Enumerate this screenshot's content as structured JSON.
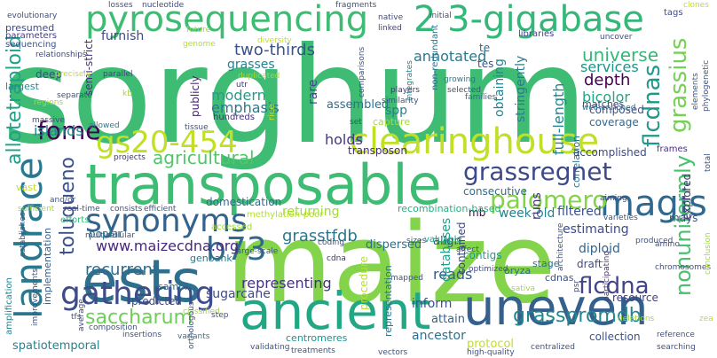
{
  "words": [
    {
      "text": "sorghum",
      "color": "#3fbc73"
    },
    {
      "text": "maize",
      "color": "#84d44b"
    },
    {
      "text": "transposable",
      "color": "#3fbc73"
    },
    {
      "text": "ancient",
      "color": "#22a785"
    },
    {
      "text": "ests",
      "color": "#2e6f8e"
    },
    {
      "text": "uneven",
      "color": "#34608d"
    },
    {
      "text": "pyrosequencing",
      "color": "#3fbc73"
    },
    {
      "text": "2 3-gigabase",
      "color": "#35b779"
    },
    {
      "text": "clearinghouse",
      "color": "#c0df25"
    },
    {
      "text": "gs20-454",
      "color": "#c0df25"
    },
    {
      "text": "landrace",
      "color": "#2a788e"
    },
    {
      "text": "gathering",
      "color": "#3e4c8a"
    },
    {
      "text": "synonyms",
      "color": "#33628d"
    },
    {
      "text": "b73",
      "color": "#31688e"
    },
    {
      "text": "magis",
      "color": "#31688e"
    },
    {
      "text": "flcdnas",
      "color": "#1f988b"
    },
    {
      "text": "grassius",
      "color": "#75d054"
    },
    {
      "text": "grassregnet",
      "color": "#3e4989"
    },
    {
      "text": "palomero",
      "color": "#84d44b"
    },
    {
      "text": "flcdna",
      "color": "#414487"
    },
    {
      "text": "nonuniformly",
      "color": "#48c16e"
    },
    {
      "text": "grasspromdb",
      "color": "#25858e"
    },
    {
      "text": "saccharum",
      "color": "#6ece58"
    },
    {
      "text": "fome",
      "color": "#440154"
    },
    {
      "text": "allotetraploid",
      "color": "#1fa188"
    },
    {
      "text": "toluqueno",
      "color": "#3b528b"
    },
    {
      "text": "agricultural",
      "color": "#52c569"
    },
    {
      "text": "grasstfdb",
      "color": "#2a788e"
    },
    {
      "text": "two-thirds",
      "color": "#3b528b"
    },
    {
      "text": "annotated",
      "color": "#2a788e"
    },
    {
      "text": "universe",
      "color": "#35b779"
    },
    {
      "text": "www.maizecdna.org",
      "color": "#482878"
    },
    {
      "text": "recurrent",
      "color": "#2f6c8e"
    },
    {
      "text": "representing",
      "color": "#46337e"
    },
    {
      "text": "sugarcane",
      "color": "#3e4c8a"
    },
    {
      "text": "services",
      "color": "#1f948c"
    },
    {
      "text": "depth",
      "color": "#440154"
    },
    {
      "text": "bicolor",
      "color": "#22a785"
    },
    {
      "text": "full-length",
      "color": "#26828e"
    },
    {
      "text": "islands",
      "color": "#25858e"
    },
    {
      "text": "modern",
      "color": "#1f9e89"
    },
    {
      "text": "emphasis",
      "color": "#2a788e"
    },
    {
      "text": "furnish",
      "color": "#404688"
    },
    {
      "text": "grasses",
      "color": "#26828e"
    },
    {
      "text": "holds",
      "color": "#453781"
    },
    {
      "text": "transposon",
      "color": "#472d7b"
    },
    {
      "text": "domestication",
      "color": "#31688e"
    },
    {
      "text": "returning",
      "color": "#a2da37"
    },
    {
      "text": "mb",
      "color": "#440154"
    },
    {
      "text": "week-old",
      "color": "#26828e"
    },
    {
      "text": "filtered",
      "color": "#3b528b"
    },
    {
      "text": "runs",
      "color": "#46327e"
    },
    {
      "text": "estimating",
      "color": "#3e4a89"
    },
    {
      "text": "diploid",
      "color": "#33638d"
    },
    {
      "text": "contigs",
      "color": "#1f9a8a"
    },
    {
      "text": "reads",
      "color": "#38598c"
    },
    {
      "text": "databases",
      "color": "#1fa188"
    },
    {
      "text": "contained",
      "color": "#404688"
    },
    {
      "text": "stringently",
      "color": "#297b8e"
    },
    {
      "text": "obtaining",
      "color": "#26828e"
    },
    {
      "text": "assembled",
      "color": "#2d708e"
    },
    {
      "text": "rare",
      "color": "#3e4c8a"
    },
    {
      "text": "spp",
      "color": "#277f8e"
    },
    {
      "text": "te",
      "color": "#31688e"
    },
    {
      "text": "tes",
      "color": "#3b528b"
    },
    {
      "text": "genome",
      "color": "#b5de2b"
    },
    {
      "text": "publicly",
      "color": "#482576"
    },
    {
      "text": "hundreds",
      "color": "#472f7d"
    },
    {
      "text": "rice",
      "color": "#c0df25"
    },
    {
      "text": "utr",
      "color": "#46337e"
    },
    {
      "text": "duplicated",
      "color": "#a2da37"
    },
    {
      "text": "semi-strict",
      "color": "#46327e"
    },
    {
      "text": "parallel",
      "color": "#424186"
    },
    {
      "text": "deep",
      "color": "#3e4c8a"
    },
    {
      "text": "presumed",
      "color": "#3e4a89"
    },
    {
      "text": "parameters",
      "color": "#443a83"
    },
    {
      "text": "sequencing",
      "color": "#3b528b"
    },
    {
      "text": "largest",
      "color": "#23898e"
    },
    {
      "text": "future",
      "color": "#9dd93b"
    },
    {
      "text": "composed",
      "color": "#3b528b"
    },
    {
      "text": "coverage",
      "color": "#31688e"
    },
    {
      "text": "matches",
      "color": "#433e85"
    },
    {
      "text": "correlation",
      "color": "#2c728e"
    },
    {
      "text": "accomplished",
      "color": "#3e4989"
    },
    {
      "text": "consecutive",
      "color": "#2f6c8e"
    },
    {
      "text": "recombination-based",
      "color": "#29af7f"
    },
    {
      "text": "align",
      "color": "#3b528b"
    },
    {
      "text": "dispersed",
      "color": "#2d708e"
    },
    {
      "text": "procedure",
      "color": "#b8de29"
    },
    {
      "text": "representation",
      "color": "#2c728e"
    },
    {
      "text": "inform",
      "color": "#3b528b"
    },
    {
      "text": "attain",
      "color": "#33638d"
    },
    {
      "text": "ancestor",
      "color": "#2d708e"
    },
    {
      "text": "collection",
      "color": "#3b528b"
    },
    {
      "text": "centromeres",
      "color": "#20928c"
    },
    {
      "text": "resource",
      "color": "#433e85"
    },
    {
      "text": "draft",
      "color": "#3e4c8a"
    },
    {
      "text": "poplar",
      "color": "#29798e"
    },
    {
      "text": "efforts",
      "color": "#38b977"
    },
    {
      "text": "predicted",
      "color": "#3e4c8a"
    },
    {
      "text": "genbank",
      "color": "#2a788e"
    },
    {
      "text": "sample",
      "color": "#2d708e"
    },
    {
      "text": "implementation",
      "color": "#355f8d"
    },
    {
      "text": "amplification",
      "color": "#26828e"
    },
    {
      "text": "spatiotemporal",
      "color": "#26828e"
    },
    {
      "text": "protocol",
      "color": "#c0df25"
    },
    {
      "text": "mays",
      "color": "#3b528b"
    },
    {
      "text": "explored",
      "color": "#46327e"
    },
    {
      "text": "valuable",
      "color": "#20a386"
    },
    {
      "text": "oryza",
      "color": "#31688e"
    },
    {
      "text": "cdna",
      "color": "#472c7a"
    },
    {
      "text": "cdnas",
      "color": "#3b528b"
    },
    {
      "text": "stage",
      "color": "#2c728e"
    },
    {
      "text": "tissue",
      "color": "#3b528b"
    },
    {
      "text": "vast",
      "color": "#c0df25"
    },
    {
      "text": "projects",
      "color": "#46337e"
    },
    {
      "text": "set",
      "color": "#3e4c8a"
    },
    {
      "text": "capture",
      "color": "#a5db36"
    },
    {
      "text": "frames",
      "color": "#46327e"
    },
    {
      "text": "elements",
      "color": "#39568c"
    },
    {
      "text": "phylogenetic",
      "color": "#3b528b"
    },
    {
      "text": "tags",
      "color": "#3e4c8a"
    },
    {
      "text": "native",
      "color": "#3e4989"
    },
    {
      "text": "fragments",
      "color": "#3b528b"
    },
    {
      "text": "libraries",
      "color": "#424186"
    },
    {
      "text": "uncover",
      "color": "#3e4989"
    },
    {
      "text": "well-enriched",
      "color": "#2a788e"
    },
    {
      "text": "comparisons",
      "color": "#3b528b"
    },
    {
      "text": "integrates",
      "color": "#26828e"
    },
    {
      "text": "non-redundant",
      "color": "#2d708e"
    },
    {
      "text": "players",
      "color": "#46337e"
    },
    {
      "text": "similarity",
      "color": "#3b528b"
    },
    {
      "text": "selected",
      "color": "#3b528b"
    },
    {
      "text": "families",
      "color": "#31688e"
    },
    {
      "text": "growing",
      "color": "#2a788e"
    },
    {
      "text": "linked",
      "color": "#424186"
    },
    {
      "text": "initial",
      "color": "#3e4c8a"
    },
    {
      "text": "diversity",
      "color": "#c0df25"
    },
    {
      "text": "losses",
      "color": "#3b528b"
    },
    {
      "text": "nucleotide",
      "color": "#3e4989"
    },
    {
      "text": "evolutionary",
      "color": "#3e4c8a"
    },
    {
      "text": "relationships",
      "color": "#404688"
    },
    {
      "text": "separate",
      "color": "#3b528b"
    },
    {
      "text": "kb",
      "color": "#a2da37"
    },
    {
      "text": "allowed",
      "color": "#2a788e"
    },
    {
      "text": "sufficient",
      "color": "#a2da37"
    },
    {
      "text": "massive",
      "color": "#3e4989"
    },
    {
      "text": "and/or",
      "color": "#3b528b"
    },
    {
      "text": "real-time",
      "color": "#3b528b"
    },
    {
      "text": "consists",
      "color": "#3b528b"
    },
    {
      "text": "efficient",
      "color": "#3b528b"
    },
    {
      "text": "methylation-poor",
      "color": "#b5de2b"
    },
    {
      "text": "accessed",
      "color": "#a2da37"
    },
    {
      "text": "multicellular",
      "color": "#3b528b"
    },
    {
      "text": "large-scale",
      "color": "#3b528b"
    },
    {
      "text": "sizes",
      "color": "#3b528b"
    },
    {
      "text": "affect",
      "color": "#3b528b"
    },
    {
      "text": "produced",
      "color": "#3b528b"
    },
    {
      "text": "varieties",
      "color": "#3b528b"
    },
    {
      "text": "aiming",
      "color": "#3b528b"
    },
    {
      "text": "optimized",
      "color": "#3e4c8a"
    },
    {
      "text": "sativa",
      "color": "#a2da37"
    },
    {
      "text": "chromosomes",
      "color": "#3b528b"
    },
    {
      "text": "psr",
      "color": "#3b528b"
    },
    {
      "text": "participating",
      "color": "#46337e"
    },
    {
      "text": "mapped",
      "color": "#3b528b"
    },
    {
      "text": "architecture",
      "color": "#3b528b"
    },
    {
      "text": "deletions",
      "color": "#a2da37"
    },
    {
      "text": "reference",
      "color": "#3b528b"
    },
    {
      "text": "searching",
      "color": "#3b528b"
    },
    {
      "text": "centralized",
      "color": "#3b528b"
    },
    {
      "text": "high-quality",
      "color": "#3b528b"
    },
    {
      "text": "vectors",
      "color": "#3b528b"
    },
    {
      "text": "validating",
      "color": "#3b528b"
    },
    {
      "text": "variants",
      "color": "#2a788e"
    },
    {
      "text": "insertions",
      "color": "#3b528b"
    },
    {
      "text": "treatments",
      "color": "#3b528b"
    },
    {
      "text": "classified",
      "color": "#a2da37"
    },
    {
      "text": "composition",
      "color": "#3b528b"
    },
    {
      "text": "improvements",
      "color": "#3b528b"
    },
    {
      "text": "establishes",
      "color": "#3b528b"
    },
    {
      "text": "tfs",
      "color": "#3b528b"
    },
    {
      "text": "average",
      "color": "#3e4c8a"
    },
    {
      "text": "orthologous",
      "color": "#3b528b"
    },
    {
      "text": "step",
      "color": "#3b528b"
    },
    {
      "text": "conclusion",
      "color": "#a2da37"
    },
    {
      "text": "total",
      "color": "#3b528b"
    },
    {
      "text": "clones",
      "color": "#c0df25"
    },
    {
      "text": "amino",
      "color": "#3b528b"
    },
    {
      "text": "zea",
      "color": "#c0df25"
    },
    {
      "text": "coding",
      "color": "#3b528b"
    },
    {
      "text": "regions",
      "color": "#a2da37"
    },
    {
      "text": "precisely",
      "color": "#c0df25"
    }
  ]
}
